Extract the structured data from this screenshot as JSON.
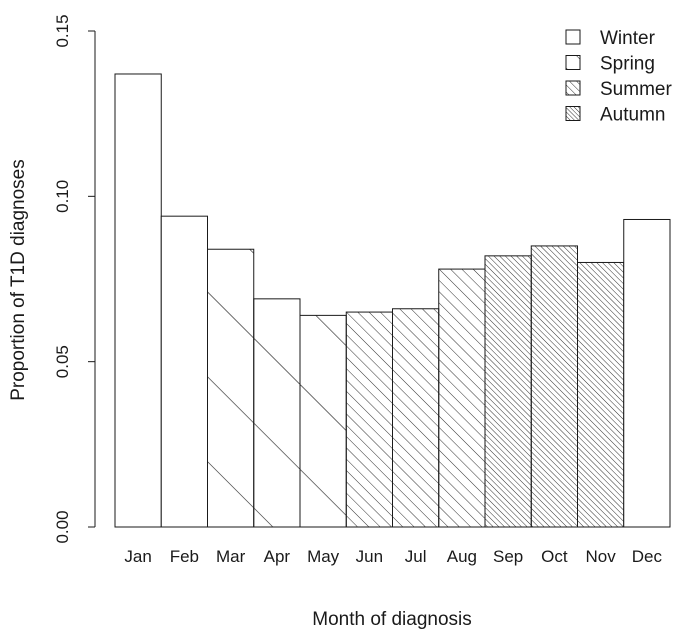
{
  "chart_data": {
    "type": "bar",
    "title": "",
    "xlabel": "Month of diagnosis",
    "ylabel": "Proportion of T1D diagnoses",
    "ylim": [
      0,
      0.15
    ],
    "yticks": [
      "0.00",
      "0.05",
      "0.10",
      "0.15"
    ],
    "ytick_values": [
      0.0,
      0.05,
      0.1,
      0.15
    ],
    "categories": [
      "Jan",
      "Feb",
      "Mar",
      "Apr",
      "May",
      "Jun",
      "Jul",
      "Aug",
      "Sep",
      "Oct",
      "Nov",
      "Dec"
    ],
    "values": [
      0.137,
      0.094,
      0.084,
      0.069,
      0.064,
      0.065,
      0.066,
      0.078,
      0.082,
      0.085,
      0.08,
      0.093
    ],
    "season_of_month": [
      "Winter",
      "Winter",
      "Spring",
      "Spring",
      "Spring",
      "Summer",
      "Summer",
      "Summer",
      "Autumn",
      "Autumn",
      "Autumn",
      "Winter"
    ],
    "grid": false,
    "legend": {
      "placement": "top-right",
      "entries": [
        {
          "name": "Winter",
          "fill": "none"
        },
        {
          "name": "Spring",
          "fill": "sparse-hatch"
        },
        {
          "name": "Summer",
          "fill": "medium-hatch"
        },
        {
          "name": "Autumn",
          "fill": "dense-hatch"
        }
      ]
    },
    "colors": {
      "stroke": "#1a1a1a",
      "background": "#ffffff"
    }
  }
}
